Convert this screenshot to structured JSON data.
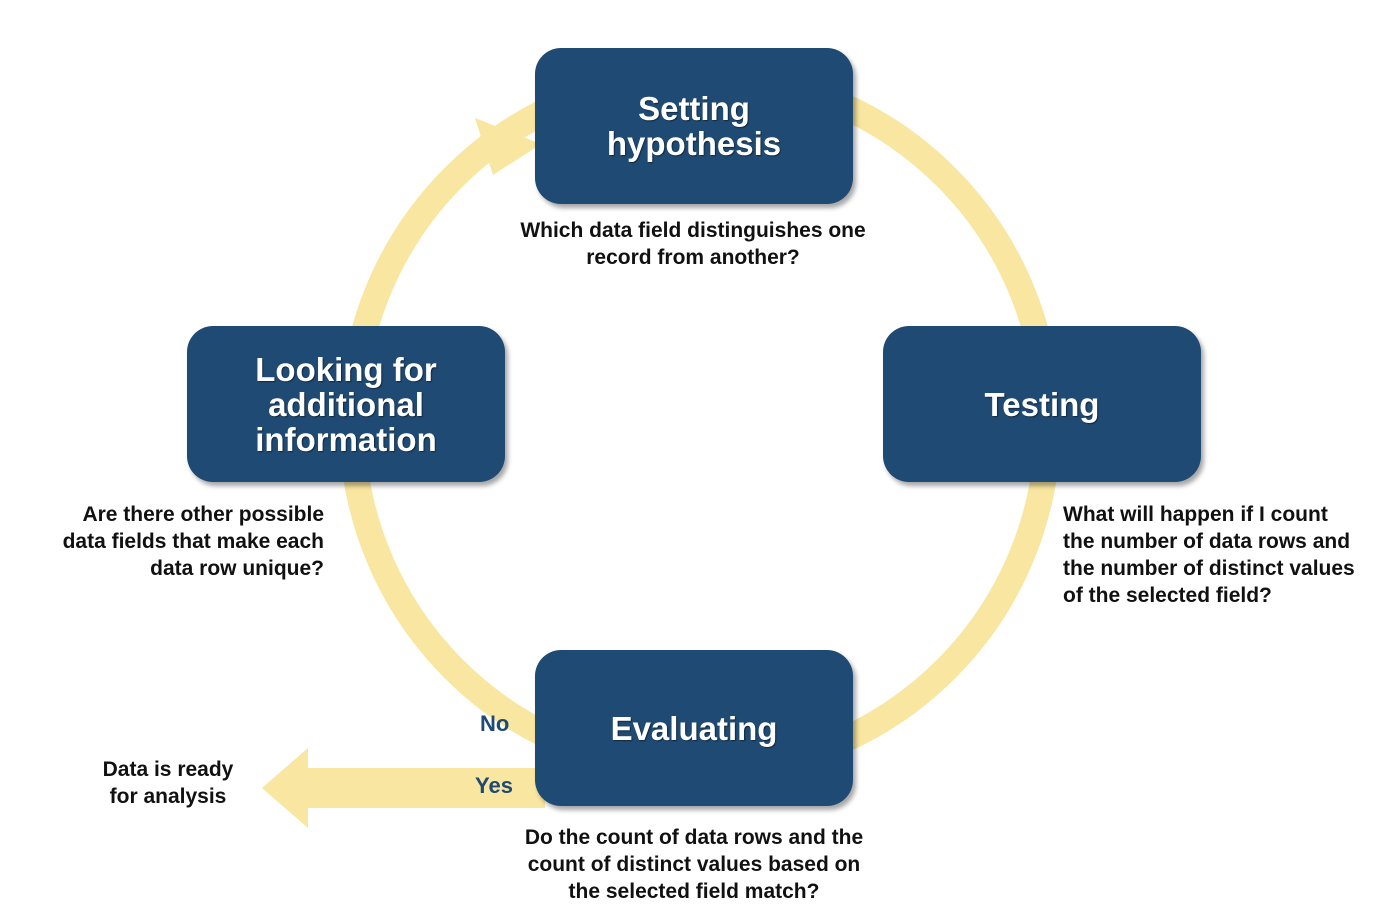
{
  "colors": {
    "node_fill": "#1f4a73",
    "arrow_fill": "#f9e6a0",
    "caption_text": "#111111",
    "branch_text": "#1f4a73"
  },
  "nodes": {
    "setting_hypothesis": {
      "label": "Setting\nhypothesis",
      "question": "Which data field distinguishes one\nrecord from another?"
    },
    "testing": {
      "label": "Testing",
      "question": "What will happen if I count\nthe number of data rows and\nthe number of distinct values\nof the selected field?"
    },
    "evaluating": {
      "label": "Evaluating",
      "question": "Do the count of data rows and the\ncount of distinct values based on\nthe selected field match?"
    },
    "looking_for_info": {
      "label": "Looking for\nadditional\ninformation",
      "question": "Are there other possible\ndata fields that make each\ndata row unique?"
    }
  },
  "branches": {
    "no_label": "No",
    "yes_label": "Yes",
    "outcome": "Data is ready\nfor analysis"
  }
}
